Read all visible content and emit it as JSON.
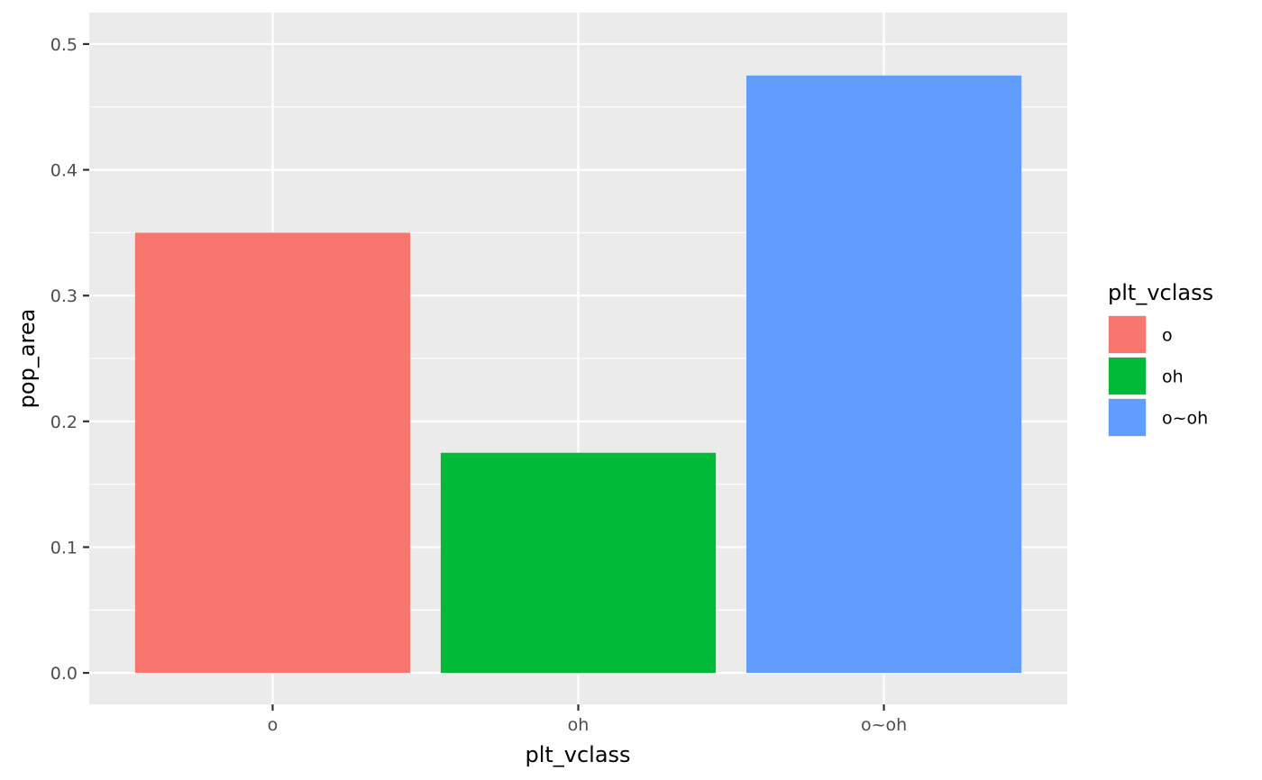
{
  "chart_data": {
    "type": "bar",
    "categories": [
      "o",
      "oh",
      "o~oh"
    ],
    "values": [
      0.35,
      0.175,
      0.475
    ],
    "colors": [
      "#F8766D",
      "#00BA38",
      "#619CFF"
    ],
    "xlabel": "plt_vclass",
    "ylabel": "pop_area",
    "ylim": [
      -0.025,
      0.525
    ],
    "yticks": [
      0.0,
      0.1,
      0.2,
      0.3,
      0.4,
      0.5
    ],
    "ytick_labels": [
      "0.0",
      "0.1",
      "0.2",
      "0.3",
      "0.4",
      "0.5"
    ],
    "grid": true,
    "panel_background": "#EBEBEB",
    "grid_color": "#FFFFFF",
    "legend": {
      "title": "plt_vclass",
      "position": "right",
      "entries": [
        "o",
        "oh",
        "o~oh"
      ]
    }
  }
}
